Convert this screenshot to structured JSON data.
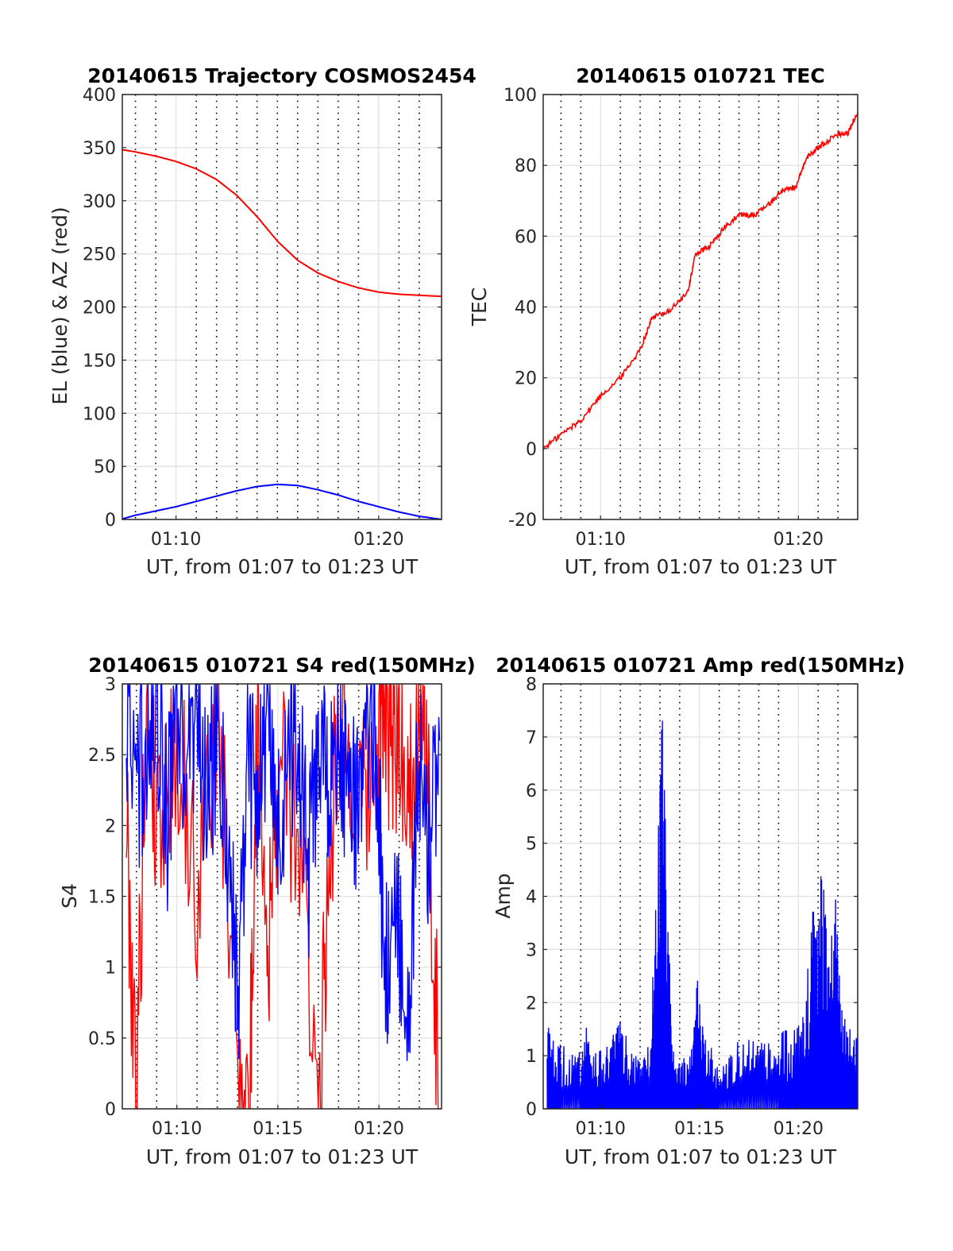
{
  "chart_data": [
    {
      "type": "line",
      "title": "20140615 Trajectory COSMOS2454",
      "xlabel": "UT, from 01:07 to 01:23 UT",
      "ylabel": "EL (blue) & AZ (red)",
      "x_unit": "minutes after 01:00 UT",
      "xlim": [
        7.35,
        23.1
      ],
      "ylim": [
        0,
        400
      ],
      "yticks": [
        0,
        50,
        100,
        150,
        200,
        250,
        300,
        350,
        400
      ],
      "xticks": [
        10,
        20
      ],
      "xticklabels": [
        "01:10",
        "01:20"
      ],
      "minor_x": [
        8,
        9,
        11,
        12,
        13,
        14,
        15,
        16,
        17,
        18,
        19,
        21,
        22
      ],
      "grid": true,
      "series": [
        {
          "color": "#ff0000",
          "x": [
            7.35,
            8,
            9,
            10,
            11,
            12,
            13,
            14,
            15,
            16,
            17,
            18,
            19,
            20,
            21,
            22,
            23.1
          ],
          "values": [
            348,
            346,
            342,
            337,
            330,
            320,
            305,
            285,
            262,
            244,
            232,
            224,
            218,
            214,
            212,
            211,
            210
          ]
        },
        {
          "color": "#0000ff",
          "x": [
            7.35,
            8,
            9,
            10,
            11,
            12,
            13,
            14,
            15,
            16,
            17,
            18,
            19,
            20,
            21,
            22,
            23.1
          ],
          "values": [
            0.5,
            4,
            8,
            12,
            17,
            22,
            27,
            31,
            33,
            32,
            28,
            23,
            17,
            12,
            7,
            3,
            0
          ]
        }
      ]
    },
    {
      "type": "line",
      "title": "20140615 010721 TEC",
      "xlabel": "UT, from 01:07 to 01:23 UT",
      "ylabel": "TEC",
      "x_unit": "minutes after 01:00 UT",
      "xlim": [
        7.1,
        23.0
      ],
      "ylim": [
        -20,
        100
      ],
      "yticks": [
        -20,
        0,
        20,
        40,
        60,
        80,
        100
      ],
      "xticks": [
        10,
        20
      ],
      "xticklabels": [
        "01:10",
        "01:20"
      ],
      "minor_x": [
        8,
        9,
        11,
        12,
        13,
        14,
        15,
        16,
        17,
        18,
        19,
        21,
        22
      ],
      "grid": true,
      "series": [
        {
          "color": "#ff0000",
          "x": [
            7.1,
            8,
            9,
            10,
            11,
            12,
            12.6,
            13.5,
            14.4,
            14.8,
            15.5,
            16.2,
            17,
            17.8,
            18.5,
            19.2,
            19.9,
            20.4,
            21,
            22,
            22.5,
            23.0
          ],
          "values": [
            0,
            4,
            8,
            15,
            20,
            28,
            37,
            39,
            44,
            55,
            57,
            62,
            66,
            66,
            69,
            73,
            74,
            82,
            85,
            89,
            89,
            95
          ]
        }
      ]
    },
    {
      "type": "line",
      "title": "20140615 010721 S4 red(150MHz)",
      "xlabel": "UT, from 01:07 to 01:23 UT",
      "ylabel": "S4",
      "x_unit": "minutes after 01:00 UT",
      "xlim": [
        7.3,
        23.1
      ],
      "ylim": [
        0,
        3
      ],
      "yticks": [
        0,
        0.5,
        1,
        1.5,
        2,
        2.5,
        3
      ],
      "yticklabels": [
        "0",
        "0.5",
        "1",
        "1.5",
        "2",
        "2.5",
        "3"
      ],
      "xticks": [
        10,
        15,
        20
      ],
      "xticklabels": [
        "01:10",
        "01:15",
        "01:20"
      ],
      "minor_x": [
        8,
        9,
        11,
        12,
        13,
        14,
        16,
        17,
        18,
        19,
        21,
        22
      ],
      "grid": true,
      "series": [
        {
          "color": "#ff0000",
          "x": [
            7.5,
            8.0,
            8.5,
            9.0,
            10.0,
            11.0,
            12.0,
            13.0,
            13.6,
            14.0,
            14.5,
            15.0,
            16.0,
            17.0,
            17.5,
            18.0,
            19.0,
            19.8,
            20.2,
            20.6,
            21.0,
            21.5,
            22.0,
            22.5,
            23.0
          ],
          "values": [
            2.1,
            0,
            3,
            2.0,
            2.6,
            1.5,
            2.8,
            0.4,
            0,
            2.9,
            1.1,
            2.4,
            2.0,
            0,
            1.6,
            2.9,
            2.0,
            2.3,
            3,
            2.4,
            2.7,
            2.2,
            3,
            2.0,
            0
          ]
        },
        {
          "color": "#0000ff",
          "x": [
            7.5,
            8.0,
            8.5,
            9.0,
            9.5,
            10.0,
            10.5,
            11.0,
            11.5,
            12.0,
            12.5,
            13.0,
            13.5,
            14.0,
            14.5,
            15.0,
            15.5,
            16.0,
            16.5,
            17.0,
            17.5,
            18.0,
            18.5,
            19.0,
            19.5,
            20.0,
            20.2,
            20.5,
            21.0,
            21.5,
            22.0,
            22.5,
            23.0
          ],
          "values": [
            2.8,
            2.2,
            2.6,
            2.9,
            2.0,
            2.7,
            2.4,
            2.9,
            2.1,
            2.6,
            2.0,
            0.7,
            2.5,
            2.2,
            2.9,
            1.9,
            2.4,
            2.8,
            1.6,
            2.6,
            2.1,
            2.7,
            2.3,
            2.0,
            2.8,
            2.2,
            1.1,
            1.0,
            1.2,
            0.9,
            2.5,
            1.7,
            2.6
          ]
        }
      ]
    },
    {
      "type": "line",
      "title": "20140615 010721 Amp red(150MHz)",
      "xlabel": "UT, from 01:07 to 01:23 UT",
      "ylabel": "Amp",
      "x_unit": "minutes after 01:00 UT",
      "xlim": [
        7.1,
        23.0
      ],
      "ylim": [
        0,
        8
      ],
      "yticks": [
        0,
        1,
        2,
        3,
        4,
        5,
        6,
        7,
        8
      ],
      "xticks": [
        10,
        15,
        20
      ],
      "xticklabels": [
        "01:10",
        "01:15",
        "01:20"
      ],
      "minor_x": [
        8,
        9,
        11,
        12,
        13,
        14,
        16,
        17,
        18,
        19,
        21,
        22
      ],
      "grid": true,
      "series": [
        {
          "color": "#0000ff",
          "x": [
            7.3,
            7.5,
            8.0,
            9.0,
            9.3,
            10.0,
            10.5,
            10.9,
            11.5,
            12.0,
            12.5,
            13.0,
            13.1,
            13.3,
            13.6,
            14.0,
            14.6,
            14.9,
            15.3,
            16.0,
            17.0,
            18.0,
            19.0,
            19.8,
            20.3,
            20.8,
            21.2,
            21.6,
            21.9,
            22.2,
            22.5,
            23.0
          ],
          "values": [
            1.7,
            1.2,
            1.1,
            1.0,
            1.6,
            1.0,
            1.1,
            1.7,
            1.1,
            1.0,
            1.1,
            6.3,
            7.4,
            5.6,
            1.1,
            1.0,
            1.1,
            2.3,
            1.2,
            1.0,
            1.2,
            1.2,
            1.3,
            1.4,
            1.8,
            3.8,
            4.1,
            3.7,
            3.6,
            1.8,
            1.6,
            1.4
          ]
        }
      ]
    }
  ]
}
